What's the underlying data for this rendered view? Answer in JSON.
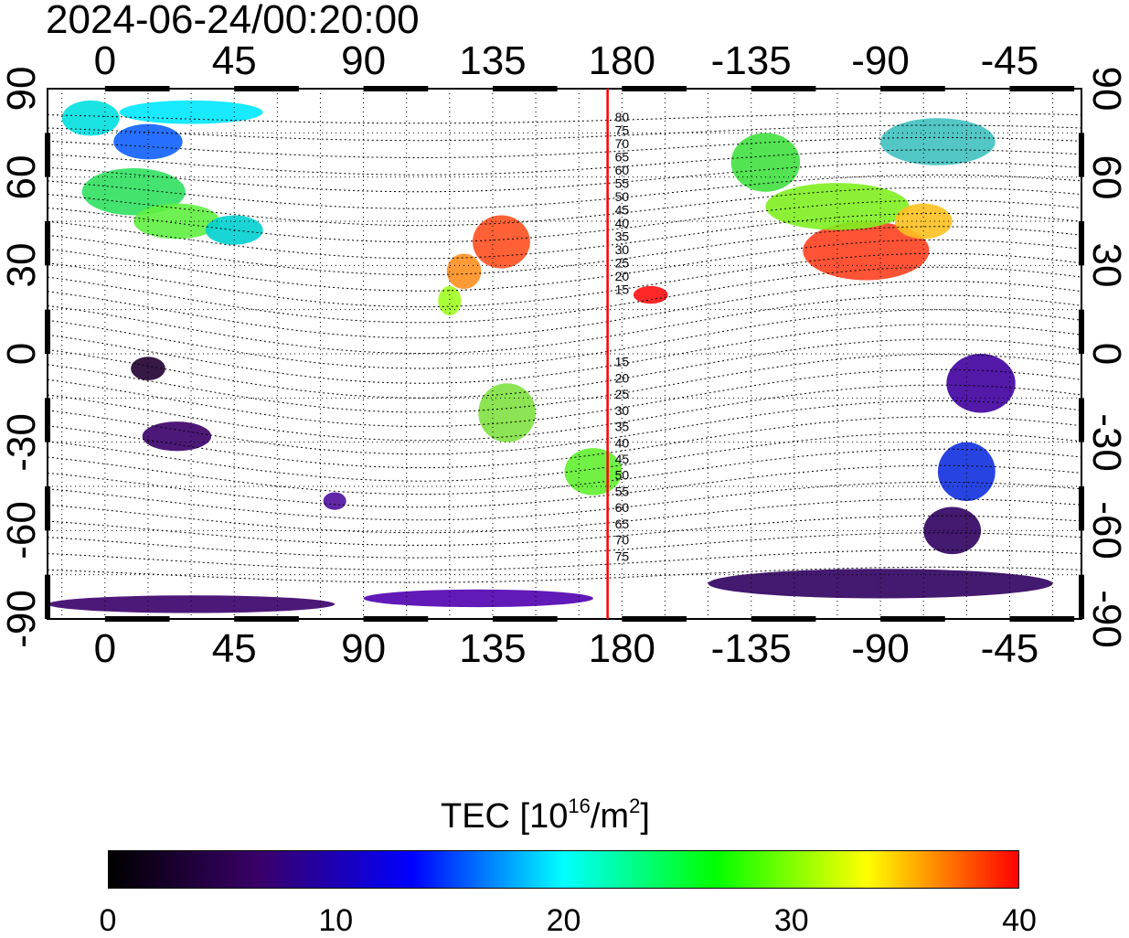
{
  "title": "2024-06-24/00:20:00",
  "map": {
    "top_lon_ticks": [
      "0",
      "45",
      "90",
      "135",
      "180",
      "-135",
      "-90",
      "-45"
    ],
    "bottom_lon_ticks": [
      "0",
      "45",
      "90",
      "135",
      "180",
      "-135",
      "-90",
      "-45"
    ],
    "left_lat_ticks": [
      "90",
      "60",
      "30",
      "0",
      "-30",
      "-60",
      "-90"
    ],
    "right_lat_ticks": [
      "90",
      "60",
      "30",
      "0",
      "-30",
      "-60",
      "-90"
    ],
    "lon_range": [
      -20,
      340
    ],
    "lat_range": [
      -90,
      90
    ],
    "terminator_line_lon": 175,
    "terminator_color": "#ff0000",
    "contour_labels_north": [
      "80",
      "75",
      "70",
      "65",
      "60",
      "55",
      "50",
      "45",
      "40",
      "35",
      "30",
      "25",
      "20",
      "15"
    ],
    "contour_labels_south": [
      "15",
      "20",
      "25",
      "30",
      "35",
      "40",
      "45",
      "50",
      "55",
      "60",
      "65",
      "70",
      "75"
    ],
    "gridlines": "dotted"
  },
  "colorbar": {
    "title_prefix": "TEC  [10",
    "title_sup1": "16",
    "title_mid": "/m",
    "title_sup2": "2",
    "title_suffix": "]",
    "ticks": [
      "0",
      "10",
      "20",
      "30",
      "40"
    ],
    "range": [
      0,
      40
    ],
    "colors": [
      "#000000",
      "#3a006a",
      "#0000ff",
      "#00ffff",
      "#00ff00",
      "#ffff00",
      "#ff0000"
    ]
  }
}
